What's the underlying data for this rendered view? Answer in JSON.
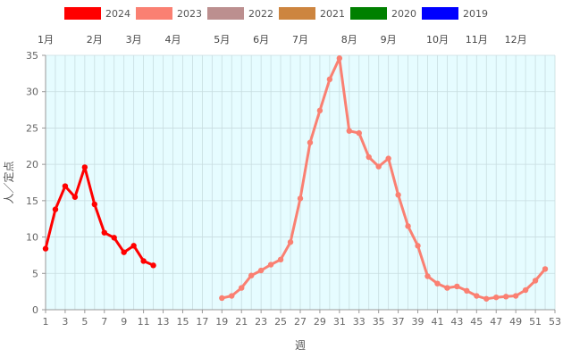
{
  "chart_data": {
    "type": "line",
    "xlabel": "週",
    "ylabel": "人／定点",
    "xlim": [
      1,
      53
    ],
    "ylim": [
      0,
      35
    ],
    "x_ticks": [
      1,
      3,
      5,
      7,
      9,
      11,
      13,
      15,
      17,
      19,
      21,
      23,
      25,
      27,
      29,
      31,
      33,
      35,
      37,
      39,
      41,
      43,
      45,
      47,
      49,
      51,
      53
    ],
    "y_ticks": [
      0,
      5,
      10,
      15,
      20,
      25,
      30,
      35
    ],
    "months": [
      {
        "label": "1月",
        "week": 1
      },
      {
        "label": "2月",
        "week": 6
      },
      {
        "label": "3月",
        "week": 10
      },
      {
        "label": "4月",
        "week": 14
      },
      {
        "label": "5月",
        "week": 19
      },
      {
        "label": "6月",
        "week": 23
      },
      {
        "label": "7月",
        "week": 27
      },
      {
        "label": "8月",
        "week": 32
      },
      {
        "label": "9月",
        "week": 36
      },
      {
        "label": "10月",
        "week": 41
      },
      {
        "label": "11月",
        "week": 45
      },
      {
        "label": "12月",
        "week": 49
      }
    ],
    "grid": true,
    "legend_position": "top",
    "legend": [
      {
        "name": "2024",
        "color": "#ff0000"
      },
      {
        "name": "2023",
        "color": "#fa8072"
      },
      {
        "name": "2022",
        "color": "#bc8f8f"
      },
      {
        "name": "2021",
        "color": "#cd853f"
      },
      {
        "name": "2020",
        "color": "#008000"
      },
      {
        "name": "2019",
        "color": "#0000ff"
      }
    ],
    "series": [
      {
        "name": "2024",
        "color": "#ff0000",
        "points": [
          [
            1,
            8.4
          ],
          [
            2,
            13.8
          ],
          [
            3,
            17.0
          ],
          [
            4,
            15.5
          ],
          [
            5,
            19.6
          ],
          [
            6,
            14.5
          ],
          [
            7,
            10.6
          ],
          [
            8,
            9.9
          ],
          [
            9,
            7.9
          ],
          [
            10,
            8.8
          ],
          [
            11,
            6.7
          ],
          [
            12,
            6.1
          ]
        ]
      },
      {
        "name": "2023",
        "color": "#fa8072",
        "points": [
          [
            19,
            1.6
          ],
          [
            20,
            1.9
          ],
          [
            21,
            3.0
          ],
          [
            22,
            4.7
          ],
          [
            23,
            5.4
          ],
          [
            24,
            6.2
          ],
          [
            25,
            6.9
          ],
          [
            26,
            9.3
          ],
          [
            27,
            15.3
          ],
          [
            28,
            23.0
          ],
          [
            29,
            27.4
          ],
          [
            30,
            31.7
          ],
          [
            31,
            34.6
          ],
          [
            32,
            24.6
          ],
          [
            33,
            24.3
          ],
          [
            34,
            21.0
          ],
          [
            35,
            19.7
          ],
          [
            36,
            20.8
          ],
          [
            37,
            15.8
          ],
          [
            38,
            11.5
          ],
          [
            39,
            8.8
          ],
          [
            40,
            4.6
          ],
          [
            41,
            3.6
          ],
          [
            42,
            3.0
          ],
          [
            43,
            3.2
          ],
          [
            44,
            2.6
          ],
          [
            45,
            1.9
          ],
          [
            46,
            1.5
          ],
          [
            47,
            1.7
          ],
          [
            48,
            1.8
          ],
          [
            49,
            1.9
          ],
          [
            50,
            2.7
          ],
          [
            51,
            4.0
          ],
          [
            52,
            5.6
          ]
        ]
      }
    ]
  }
}
